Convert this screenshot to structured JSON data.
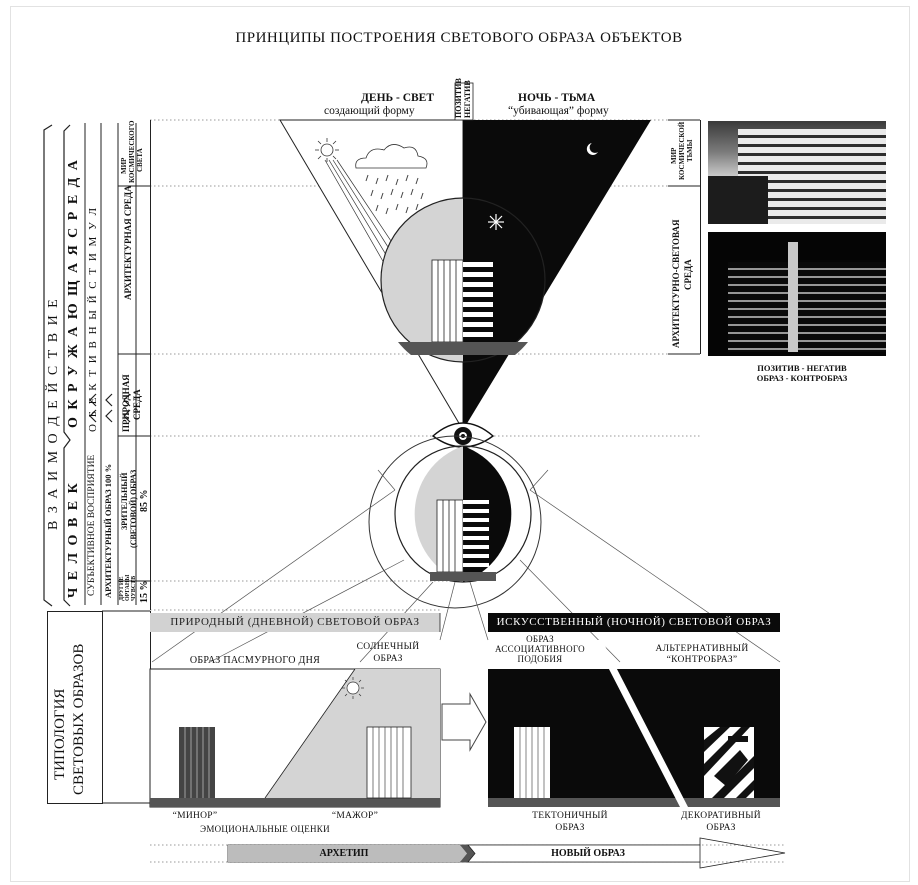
{
  "title": "ПРИНЦИПЫ ПОСТРОЕНИЯ СВЕТОВОГО ОБРАЗА ОБЪЕКТОВ",
  "top": {
    "day_title": "ДЕНЬ - СВЕТ",
    "day_sub": "создающий форму",
    "night_title": "НОЧЬ - ТЬМА",
    "night_sub": "“убивающая” форму",
    "center_1": "ПОЗИТИВ",
    "center_2": "НЕГАТИВ"
  },
  "left": {
    "vzaimo": "В З А И М О Д Е Й С Т В И Е",
    "okruz": "О К Р У Ж А Ю Щ А Я     С Р Е Д А",
    "chelovek": "Ч Е Л О В Е К",
    "stimul": "О Б Е К Т И В Н Ы Й     С Т И М У Л",
    "subj": "СУБЪЕКТИВНОЕ     ВОСПРИЯТИЕ",
    "mir_l1": "МИР",
    "mir_l2": "КОСМИЧЕСКОГО",
    "mir_l3": "СВЕТА",
    "arch": "АРХИТЕКТУРНАЯ СРЕДА",
    "prir_l1": "ПРИРОДНАЯ",
    "prir_l2": "СРЕДА",
    "arch_obraz": "АРХИТЕКТУРНЫЙ ОБРАЗ 100 %",
    "zrit_l1": "ЗРИТЕЛЬНЫЙ",
    "zrit_l2": "(СВЕТОВОЙ) ОБРАЗ",
    "pct85": "85 %",
    "drugie_l1": "ДРУГИЕ",
    "drugie_l2": "ОРГАНЫ",
    "drugie_l3": "ЧУВСТВ",
    "pct15": "15 %",
    "tipologia_l1": "ТИПОЛОГИЯ",
    "tipologia_l2": "СВЕТОВЫХ ОБРАЗОВ"
  },
  "right": {
    "mir_t_l1": "МИР",
    "mir_t_l2": "КОСМИЧЕСКОЙ",
    "mir_t_l3": "ТЬМЫ",
    "arch_sv_l1": "АРХИТЕКТУРНО-СВЕТОВАЯ",
    "arch_sv_l2": "СРЕДА",
    "cap_l1": "ПОЗИТИВ - НЕГАТИВ",
    "cap_l2": "ОБРАЗ - КОНТРОБРАЗ"
  },
  "bands": {
    "natural": "ПРИРОДНЫЙ (ДНЕВНОЙ) СВЕТОВОЙ ОБРАЗ",
    "artificial": "ИСКУССТВЕННЫЙ (НОЧНОЙ) СВЕТОВОЙ ОБРАЗ"
  },
  "bottom": {
    "pasm": "ОБРАЗ ПАСМУРНОГО ДНЯ",
    "soln_l1": "СОЛНЕЧНЫЙ",
    "soln_l2": "ОБРАЗ",
    "assoc_l1": "ОБРАЗ",
    "assoc_l2": "АССОЦИАТИВНОГО",
    "assoc_l3": "ПОДОБИЯ",
    "alt_l1": "АЛЬТЕРНАТИВНЫЙ",
    "alt_l2": "“КОНТРОБРАЗ”",
    "minor": "“МИНОР”",
    "major": "“МАЖОР”",
    "emo": "ЭМОЦИОНАЛЬНЫЕ ОЦЕНКИ",
    "tekt_l1": "ТЕКТОНИЧНЫЙ",
    "tekt_l2": "ОБРАЗ",
    "dekor_l1": "ДЕКОРАТИВНЫЙ",
    "dekor_l2": "ОБРАЗ",
    "arhetip": "АРХЕТИП",
    "novy": "НОВЫЙ ОБРАЗ"
  }
}
